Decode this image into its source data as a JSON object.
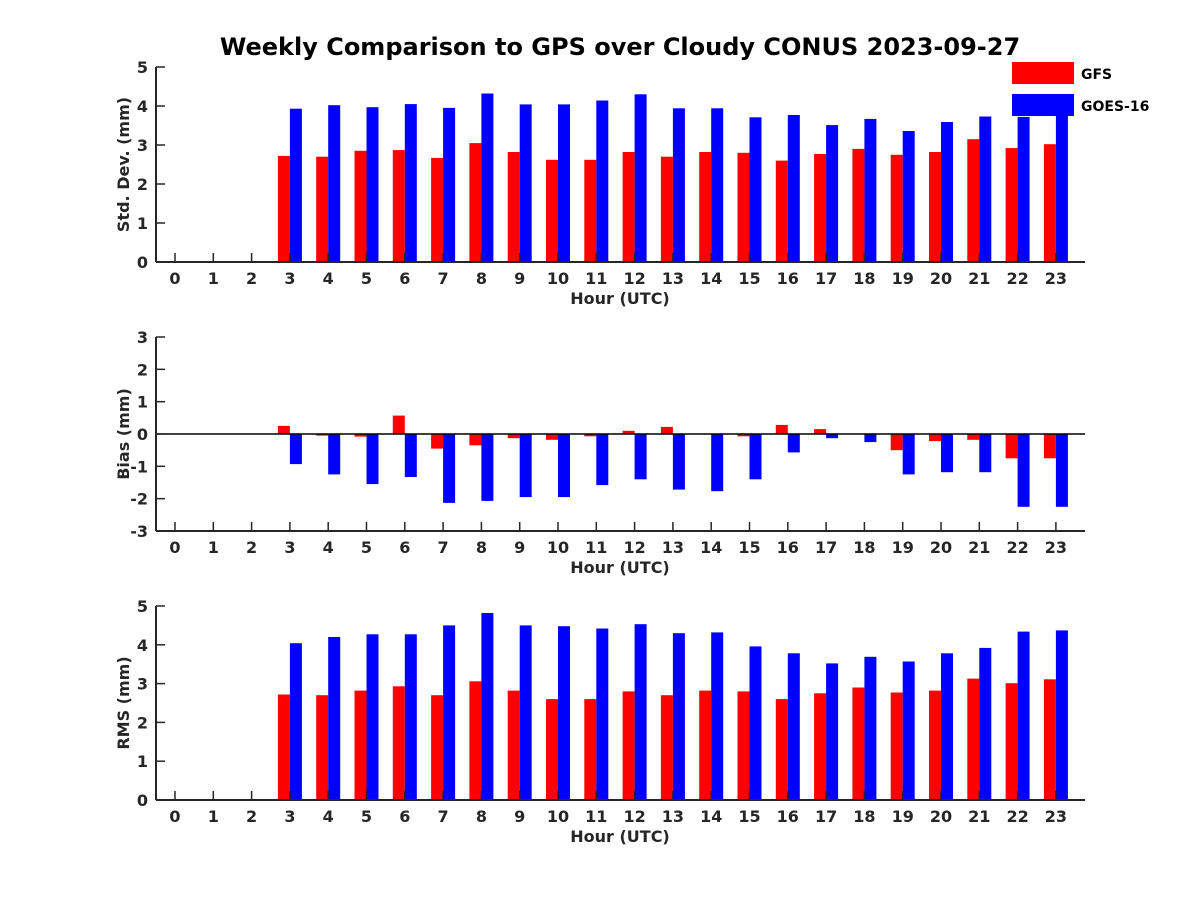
{
  "title": "Weekly Comparison to GPS over Cloudy CONUS 2023-09-27",
  "colors": {
    "GFS": "#ff0000",
    "GOES-16": "#0000ff"
  },
  "chart_data": [
    {
      "type": "bar",
      "ylabel": "Std. Dev. (mm)",
      "xlabel": "Hour (UTC)",
      "ylim": [
        0,
        5
      ],
      "yticks": [
        0,
        1,
        2,
        3,
        4,
        5
      ],
      "categories": [
        0,
        1,
        2,
        3,
        4,
        5,
        6,
        7,
        8,
        9,
        10,
        11,
        12,
        13,
        14,
        15,
        16,
        17,
        18,
        19,
        20,
        21,
        22,
        23
      ],
      "series": [
        {
          "name": "GFS",
          "values": [
            0,
            0,
            0,
            2.72,
            2.7,
            2.85,
            2.87,
            2.67,
            3.05,
            2.82,
            2.62,
            2.62,
            2.82,
            2.7,
            2.82,
            2.8,
            2.6,
            2.77,
            2.9,
            2.75,
            2.82,
            3.15,
            2.92,
            3.02
          ]
        },
        {
          "name": "GOES-16",
          "values": [
            0,
            0,
            0,
            3.93,
            4.02,
            3.97,
            4.05,
            3.95,
            4.32,
            4.04,
            4.04,
            4.14,
            4.3,
            3.94,
            3.94,
            3.71,
            3.77,
            3.51,
            3.67,
            3.36,
            3.59,
            3.73,
            3.72,
            3.86
          ]
        }
      ]
    },
    {
      "type": "bar",
      "ylabel": "Bias (mm)",
      "xlabel": "Hour (UTC)",
      "ylim": [
        -3,
        3
      ],
      "yticks": [
        -3,
        -2,
        -1,
        0,
        1,
        2,
        3
      ],
      "categories": [
        0,
        1,
        2,
        3,
        4,
        5,
        6,
        7,
        8,
        9,
        10,
        11,
        12,
        13,
        14,
        15,
        16,
        17,
        18,
        19,
        20,
        21,
        22,
        23
      ],
      "series": [
        {
          "name": "GFS",
          "values": [
            0,
            0,
            0,
            0.25,
            -0.05,
            -0.08,
            0.57,
            -0.45,
            -0.35,
            -0.13,
            -0.18,
            -0.07,
            0.1,
            0.22,
            0,
            -0.07,
            0.28,
            0.15,
            0,
            -0.5,
            -0.22,
            -0.18,
            -0.75,
            -0.75
          ]
        },
        {
          "name": "GOES-16",
          "values": [
            0,
            0,
            0,
            -0.93,
            -1.25,
            -1.55,
            -1.33,
            -2.13,
            -2.07,
            -1.95,
            -1.95,
            -1.58,
            -1.4,
            -1.72,
            -1.77,
            -1.4,
            -0.57,
            -0.13,
            -0.25,
            -1.25,
            -1.18,
            -1.18,
            -2.25,
            -2.25
          ]
        }
      ]
    },
    {
      "type": "bar",
      "ylabel": "RMS (mm)",
      "xlabel": "Hour (UTC)",
      "ylim": [
        0,
        5
      ],
      "yticks": [
        0,
        1,
        2,
        3,
        4,
        5
      ],
      "categories": [
        0,
        1,
        2,
        3,
        4,
        5,
        6,
        7,
        8,
        9,
        10,
        11,
        12,
        13,
        14,
        15,
        16,
        17,
        18,
        19,
        20,
        21,
        22,
        23
      ],
      "series": [
        {
          "name": "GFS",
          "values": [
            0,
            0,
            0,
            2.72,
            2.7,
            2.82,
            2.93,
            2.7,
            3.06,
            2.82,
            2.6,
            2.6,
            2.8,
            2.7,
            2.82,
            2.8,
            2.6,
            2.75,
            2.9,
            2.77,
            2.82,
            3.13,
            3.01,
            3.11
          ]
        },
        {
          "name": "GOES-16",
          "values": [
            0,
            0,
            0,
            4.04,
            4.2,
            4.27,
            4.27,
            4.5,
            4.82,
            4.5,
            4.48,
            4.42,
            4.53,
            4.3,
            4.32,
            3.96,
            3.78,
            3.52,
            3.69,
            3.57,
            3.78,
            3.92,
            4.34,
            4.37
          ]
        }
      ]
    }
  ],
  "legend": [
    {
      "label": "GFS",
      "color": "#ff0000"
    },
    {
      "label": "GOES-16",
      "color": "#0000ff"
    }
  ]
}
